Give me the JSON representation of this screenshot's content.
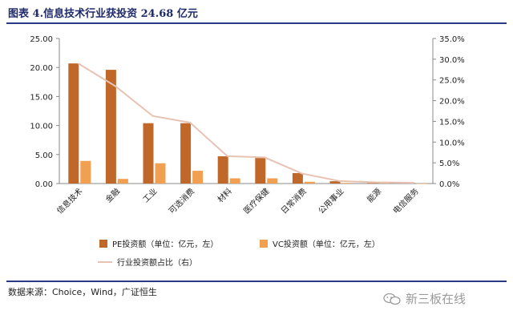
{
  "title": "图表 4.信息技术行业获投资 24.68 亿元",
  "source": "数据来源：Choice，Wind，广证恒生",
  "watermark": "新三板在线",
  "watermark_icon": "wechat-icon",
  "colors": {
    "pe": "#c0672a",
    "vc": "#f0a050",
    "share_line": "#e8c3b3",
    "title": "#1f2a6b",
    "rule": "#2a3a85"
  },
  "chart_data": {
    "type": "bar",
    "categories": [
      "信息技术",
      "金融",
      "工业",
      "可选消费",
      "材料",
      "医疗保健",
      "日常消费",
      "公用事业",
      "能源",
      "电信服务"
    ],
    "series": [
      {
        "name": "PE投资额（单位：亿元，左）",
        "type": "bar",
        "axis": "left",
        "values": [
          20.7,
          19.6,
          10.4,
          10.4,
          4.7,
          4.4,
          1.8,
          0.4,
          0.1,
          0.1
        ]
      },
      {
        "name": "VC投资额（单位：亿元，左）",
        "type": "bar",
        "axis": "left",
        "values": [
          3.9,
          0.8,
          3.5,
          2.2,
          0.9,
          0.9,
          0.3,
          0.1,
          0.1,
          0.0
        ]
      },
      {
        "name": "行业投资额占比（右）",
        "type": "line",
        "axis": "right",
        "values": [
          29.0,
          23.5,
          16.3,
          14.7,
          6.6,
          6.3,
          2.4,
          0.6,
          0.3,
          0.2
        ]
      }
    ],
    "y_left": {
      "min": 0,
      "max": 25,
      "ticks": [
        "0.00",
        "5.00",
        "10.00",
        "15.00",
        "20.00",
        "25.00"
      ]
    },
    "y_right": {
      "min": 0,
      "max": 35,
      "ticks": [
        "0.0%",
        "5.0%",
        "10.0%",
        "15.0%",
        "20.0%",
        "25.0%",
        "30.0%",
        "35.0%"
      ]
    },
    "grid": false,
    "legend_position": "bottom"
  }
}
